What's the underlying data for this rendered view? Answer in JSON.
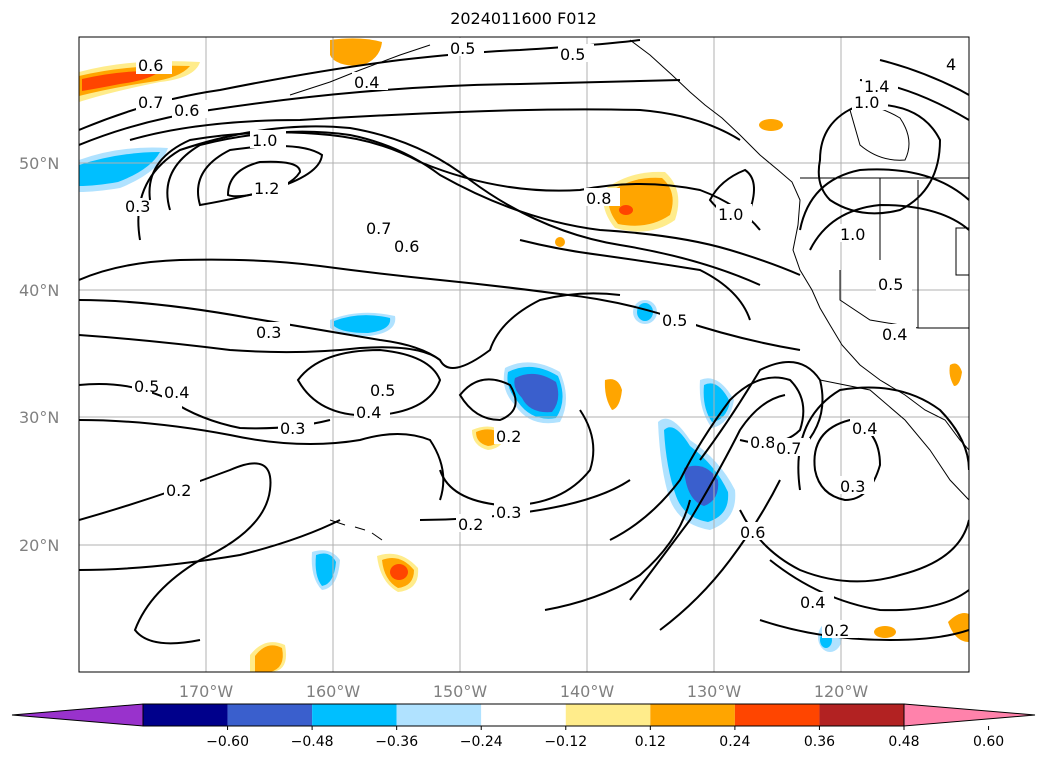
{
  "title": "2024011600 F012",
  "lat_labels": [
    "50°N",
    "40°N",
    "30°N",
    "20°N"
  ],
  "lon_labels": [
    "170°W",
    "160°W",
    "150°W",
    "140°W",
    "130°W",
    "120°W"
  ],
  "colorbar": {
    "colors": [
      "#9932cc",
      "#00008b",
      "#3a5fcd",
      "#00bfff",
      "#b0e2ff",
      "#ffffff",
      "#ffec8b",
      "#ffa500",
      "#ff4500",
      "#b22222",
      "#ff82ab"
    ],
    "tick_labels": [
      "−0.60",
      "−0.48",
      "−0.36",
      "−0.24",
      "−0.12",
      "0.12",
      "0.24",
      "0.36",
      "0.48",
      "0.60"
    ]
  },
  "contour_labels": [
    "0.6",
    "0.7",
    "0.6",
    "0.3",
    "1.0",
    "1.2",
    "0.7",
    "0.6",
    "0.5",
    "0.4",
    "0.5",
    "0.8",
    "1.0",
    "1.4",
    "1.0",
    "4",
    "1.0",
    "0.5",
    "0.5",
    "0.4",
    "0.3",
    "0.5",
    "0.4",
    "0.5",
    "0.4",
    "0.3",
    "0.2",
    "0.3",
    "0.2",
    "0.2",
    "0.8",
    "0.7",
    "0.4",
    "0.3",
    "0.6",
    "0.4",
    "0.2"
  ]
}
